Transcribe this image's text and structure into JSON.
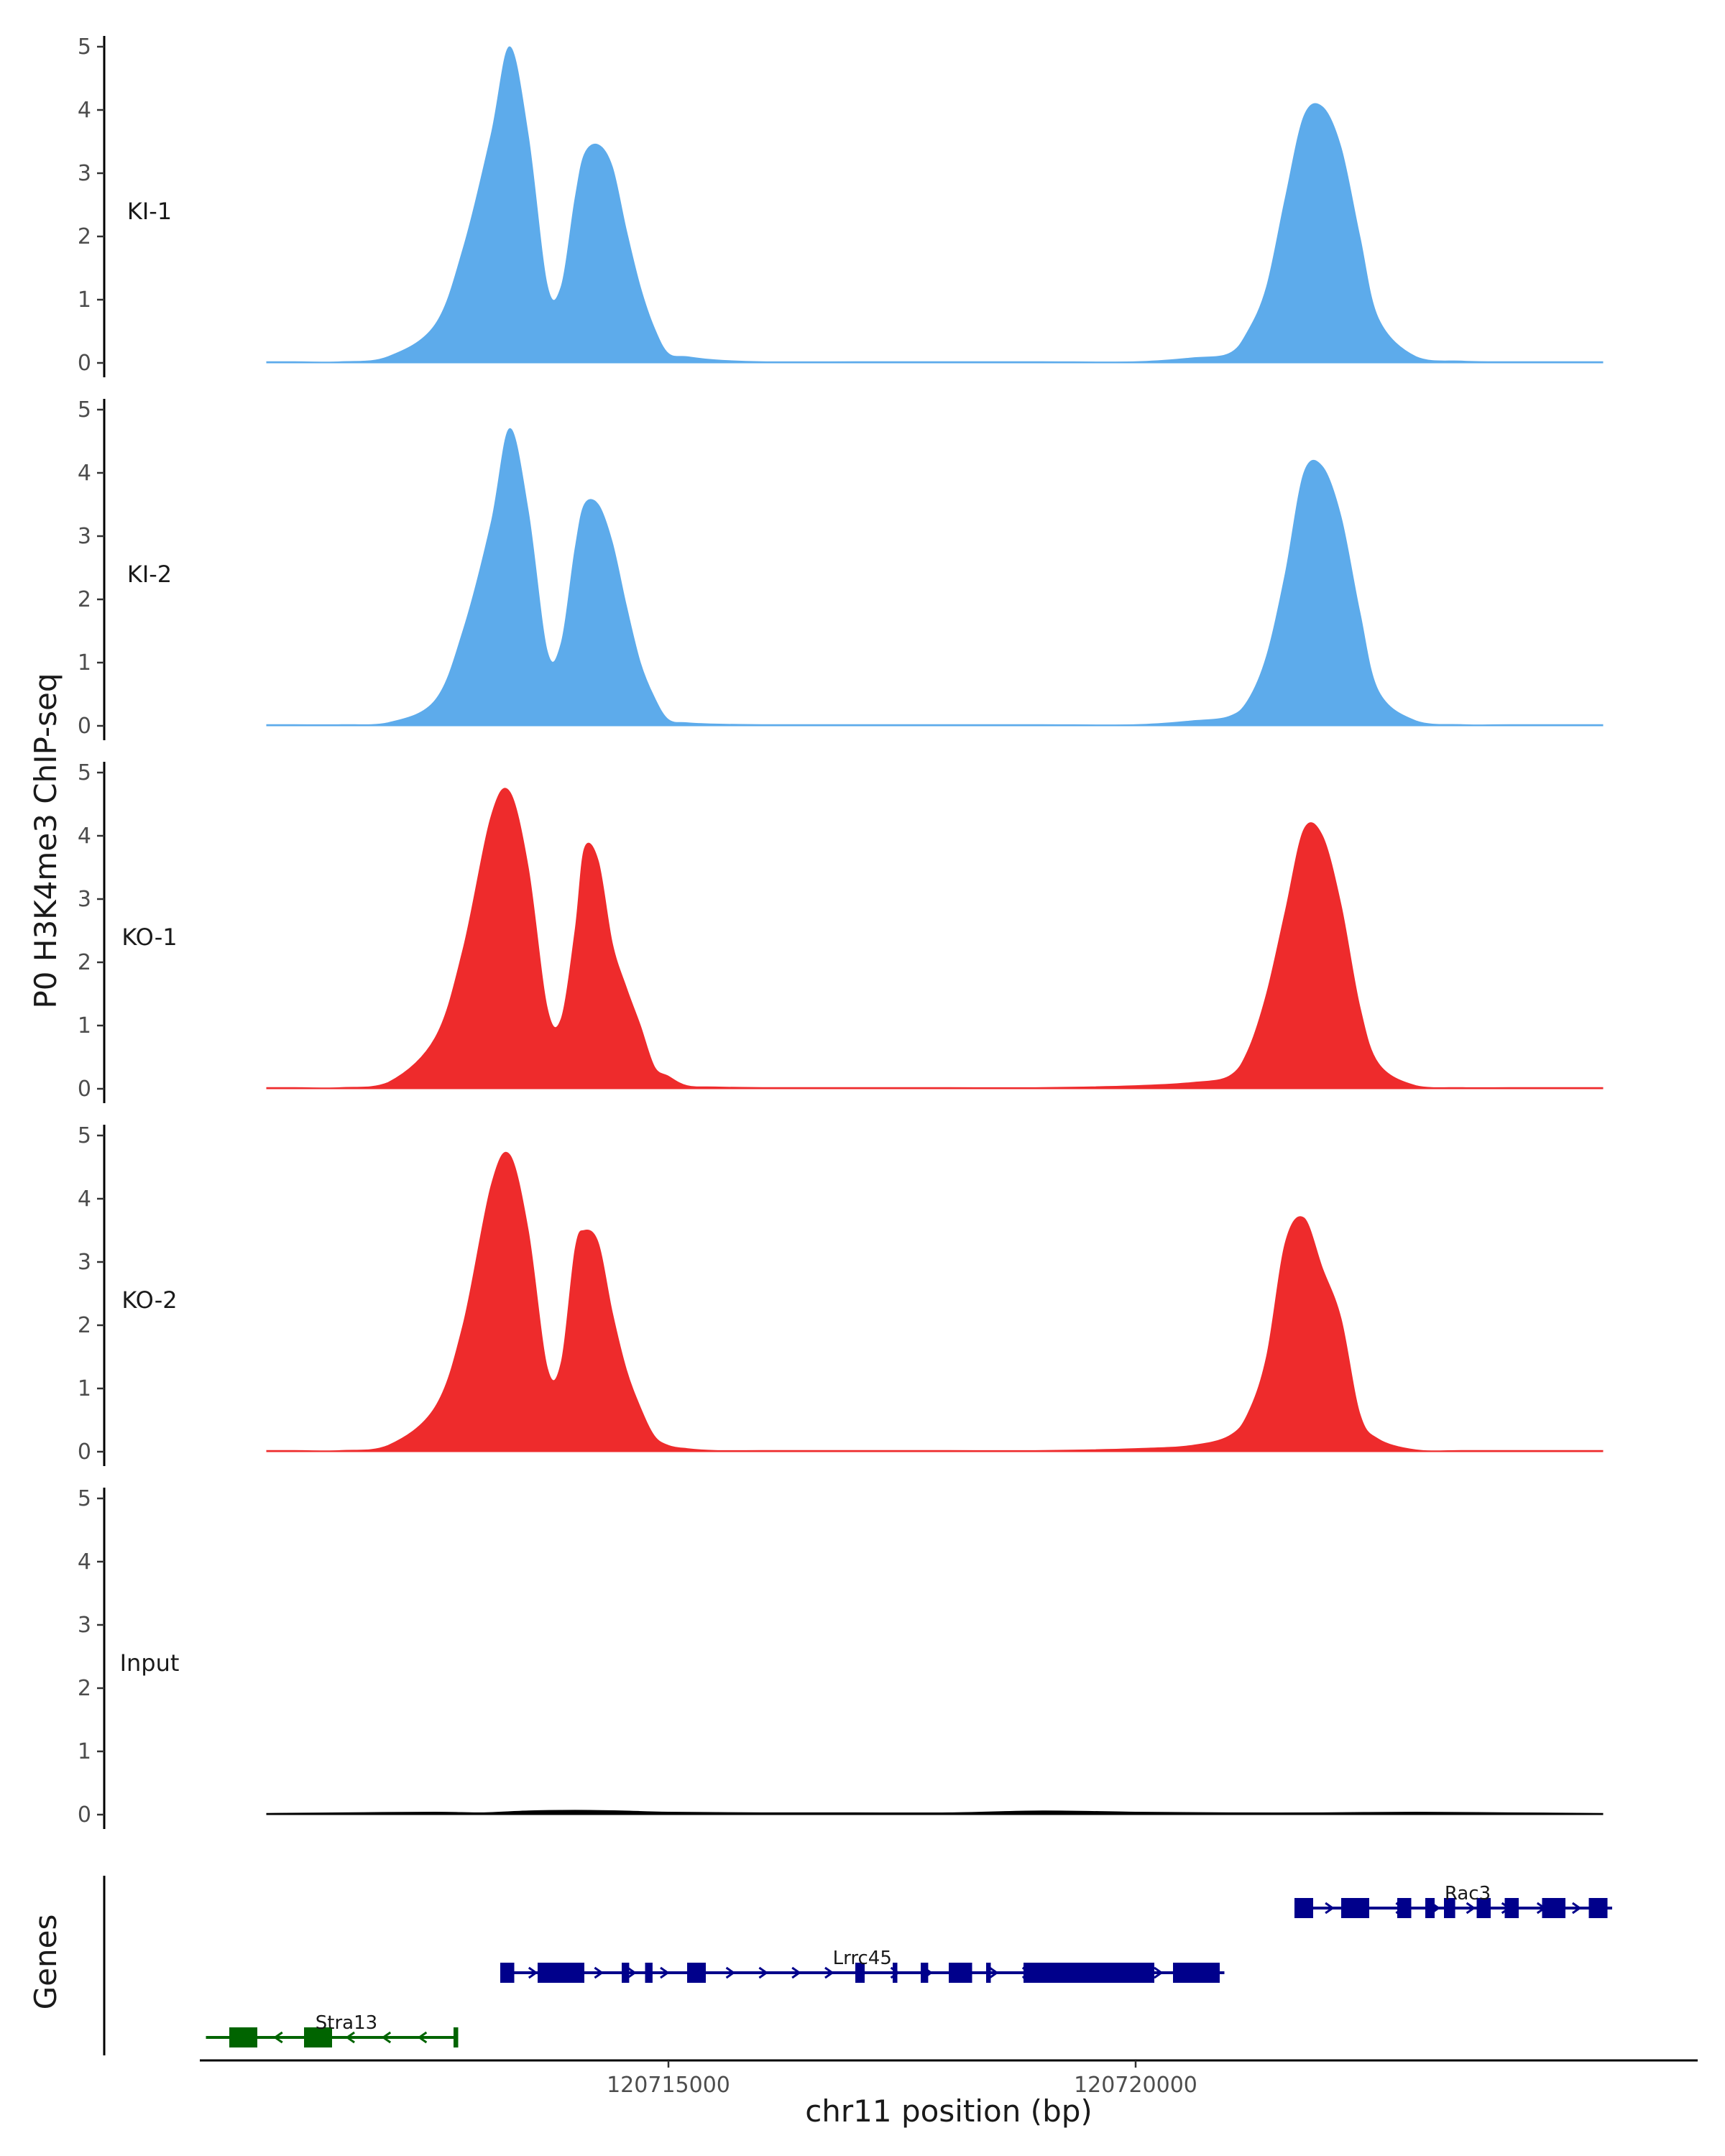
{
  "chart_data": {
    "type": "area",
    "ylabel": "P0 H3K4me3 ChIP-seq",
    "xlabel": "chr11 position (bp)",
    "x_range": [
      120710000,
      120726000
    ],
    "ylim": [
      0,
      5
    ],
    "y_ticks": [
      0,
      1,
      2,
      3,
      4,
      5
    ],
    "x_ticks": [
      120715000,
      120720000
    ],
    "x_tick_labels": [
      "120715000",
      "120720000"
    ],
    "tracks": [
      {
        "name": "KI-1",
        "color": "#5dabeb",
        "x": [
          120710700,
          120711000,
          120711500,
          120712000,
          120712500,
          120712800,
          120713100,
          120713300,
          120713500,
          120713700,
          120713850,
          120714000,
          120714100,
          120714250,
          120714400,
          120714550,
          120714700,
          120714850,
          120715000,
          120715200,
          120715500,
          120716000,
          120717000,
          120718000,
          120719000,
          120720000,
          120720600,
          120721000,
          120721200,
          120721400,
          120721600,
          120721800,
          120722000,
          120722200,
          120722400,
          120722600,
          120723000,
          120723500,
          120724000,
          120725000
        ],
        "values": [
          0.02,
          0.02,
          0.02,
          0.1,
          0.6,
          1.8,
          3.6,
          5.0,
          3.6,
          1.25,
          1.2,
          2.6,
          3.3,
          3.45,
          3.1,
          2.1,
          1.2,
          0.55,
          0.15,
          0.1,
          0.05,
          0.02,
          0.02,
          0.02,
          0.02,
          0.02,
          0.08,
          0.15,
          0.5,
          1.2,
          2.6,
          3.9,
          4.05,
          3.4,
          2.0,
          0.7,
          0.1,
          0.03,
          0.02,
          0.02
        ]
      },
      {
        "name": "KI-2",
        "color": "#5dabeb",
        "x": [
          120710700,
          120711000,
          120711500,
          120712000,
          120712500,
          120712800,
          120713100,
          120713300,
          120713500,
          120713700,
          120713850,
          120714000,
          120714100,
          120714250,
          120714400,
          120714550,
          120714700,
          120714850,
          120715000,
          120715200,
          120715500,
          120716000,
          120717000,
          120718000,
          120719000,
          120720000,
          120720600,
          120721000,
          120721200,
          120721400,
          120721600,
          120721800,
          120722000,
          120722200,
          120722400,
          120722600,
          120723000,
          120723500,
          120724000,
          120725000
        ],
        "values": [
          0.02,
          0.02,
          0.02,
          0.05,
          0.4,
          1.5,
          3.2,
          4.7,
          3.4,
          1.2,
          1.3,
          2.8,
          3.5,
          3.5,
          2.9,
          1.9,
          1.0,
          0.45,
          0.1,
          0.05,
          0.03,
          0.02,
          0.02,
          0.02,
          0.02,
          0.02,
          0.08,
          0.15,
          0.4,
          1.1,
          2.4,
          4.0,
          4.1,
          3.3,
          1.8,
          0.55,
          0.08,
          0.02,
          0.02,
          0.02
        ]
      },
      {
        "name": "KO-1",
        "color": "#ee2b2c",
        "x": [
          120710700,
          120711000,
          120711500,
          120712000,
          120712500,
          120712800,
          120713100,
          120713300,
          120713500,
          120713700,
          120713850,
          120714000,
          120714100,
          120714250,
          120714400,
          120714550,
          120714700,
          120714850,
          120715000,
          120715200,
          120715500,
          120716000,
          120717000,
          120718000,
          120719000,
          120720000,
          120720600,
          120721000,
          120721200,
          120721400,
          120721600,
          120721800,
          120722000,
          120722200,
          120722400,
          120722600,
          120723000,
          120723500,
          120724000,
          120725000
        ],
        "values": [
          0.02,
          0.02,
          0.02,
          0.1,
          0.8,
          2.2,
          4.3,
          4.7,
          3.5,
          1.3,
          1.1,
          2.5,
          3.8,
          3.6,
          2.3,
          1.6,
          1.0,
          0.35,
          0.2,
          0.05,
          0.03,
          0.02,
          0.02,
          0.02,
          0.02,
          0.05,
          0.1,
          0.2,
          0.6,
          1.5,
          2.8,
          4.1,
          4.0,
          2.9,
          1.3,
          0.4,
          0.05,
          0.02,
          0.02,
          0.02
        ]
      },
      {
        "name": "KO-2",
        "color": "#ee2b2c",
        "x": [
          120710700,
          120711000,
          120711500,
          120712000,
          120712500,
          120712800,
          120713100,
          120713300,
          120713500,
          120713700,
          120713850,
          120714000,
          120714100,
          120714250,
          120714400,
          120714550,
          120714700,
          120714850,
          120715000,
          120715200,
          120715500,
          120716000,
          120717000,
          120718000,
          120719000,
          120720000,
          120720600,
          120721000,
          120721200,
          120721400,
          120721600,
          120721800,
          120722000,
          120722200,
          120722400,
          120722600,
          120723000,
          120723500,
          120724000,
          120725000
        ],
        "values": [
          0.02,
          0.02,
          0.02,
          0.1,
          0.7,
          2.0,
          4.2,
          4.7,
          3.5,
          1.35,
          1.4,
          3.2,
          3.5,
          3.3,
          2.2,
          1.3,
          0.7,
          0.25,
          0.1,
          0.05,
          0.02,
          0.02,
          0.02,
          0.02,
          0.02,
          0.05,
          0.1,
          0.25,
          0.6,
          1.5,
          3.3,
          3.7,
          2.9,
          2.1,
          0.6,
          0.2,
          0.03,
          0.02,
          0.02,
          0.02
        ]
      },
      {
        "name": "Input",
        "color": "#000000",
        "x": [
          120710700,
          120711500,
          120712500,
          120713000,
          120713500,
          120714000,
          120714500,
          120715000,
          120716000,
          120717000,
          120718000,
          120719000,
          120720000,
          120721000,
          120722000,
          120723000,
          120724000,
          120725000
        ],
        "values": [
          0.02,
          0.03,
          0.04,
          0.03,
          0.06,
          0.07,
          0.06,
          0.04,
          0.03,
          0.03,
          0.03,
          0.06,
          0.04,
          0.03,
          0.03,
          0.04,
          0.03,
          0.02
        ]
      }
    ],
    "genes_axis_label": "Genes",
    "genes": [
      {
        "name": "Rac3",
        "color": "#00008b",
        "strand": "+",
        "start": 120721700,
        "end": 120725100,
        "exons": [
          [
            120721700,
            120721900
          ],
          [
            120722200,
            120722500
          ],
          [
            120722800,
            120722950
          ],
          [
            120723100,
            120723200
          ],
          [
            120723300,
            120723420
          ],
          [
            120723650,
            120723800
          ],
          [
            120723950,
            120724100
          ],
          [
            120724350,
            120724600
          ],
          [
            120724850,
            120725050
          ]
        ]
      },
      {
        "name": "Lrrc45",
        "color": "#00008b",
        "strand": "+",
        "start": 120713200,
        "end": 120720950,
        "exons": [
          [
            120713200,
            120713350
          ],
          [
            120713600,
            120714100
          ],
          [
            120714500,
            120714580
          ],
          [
            120714750,
            120714830
          ],
          [
            120715200,
            120715400
          ],
          [
            120717000,
            120717100
          ],
          [
            120717400,
            120717450
          ],
          [
            120717700,
            120717780
          ],
          [
            120718000,
            120718250
          ],
          [
            120718400,
            120718450
          ],
          [
            120718800,
            120720200
          ],
          [
            120720400,
            120720900
          ]
        ]
      },
      {
        "name": "Stra13",
        "color": "#006400",
        "strand": "-",
        "start": 120710050,
        "end": 120712750,
        "exons": [
          [
            120710300,
            120710600
          ],
          [
            120711100,
            120711400
          ],
          [
            120712700,
            120712750
          ]
        ]
      }
    ]
  }
}
